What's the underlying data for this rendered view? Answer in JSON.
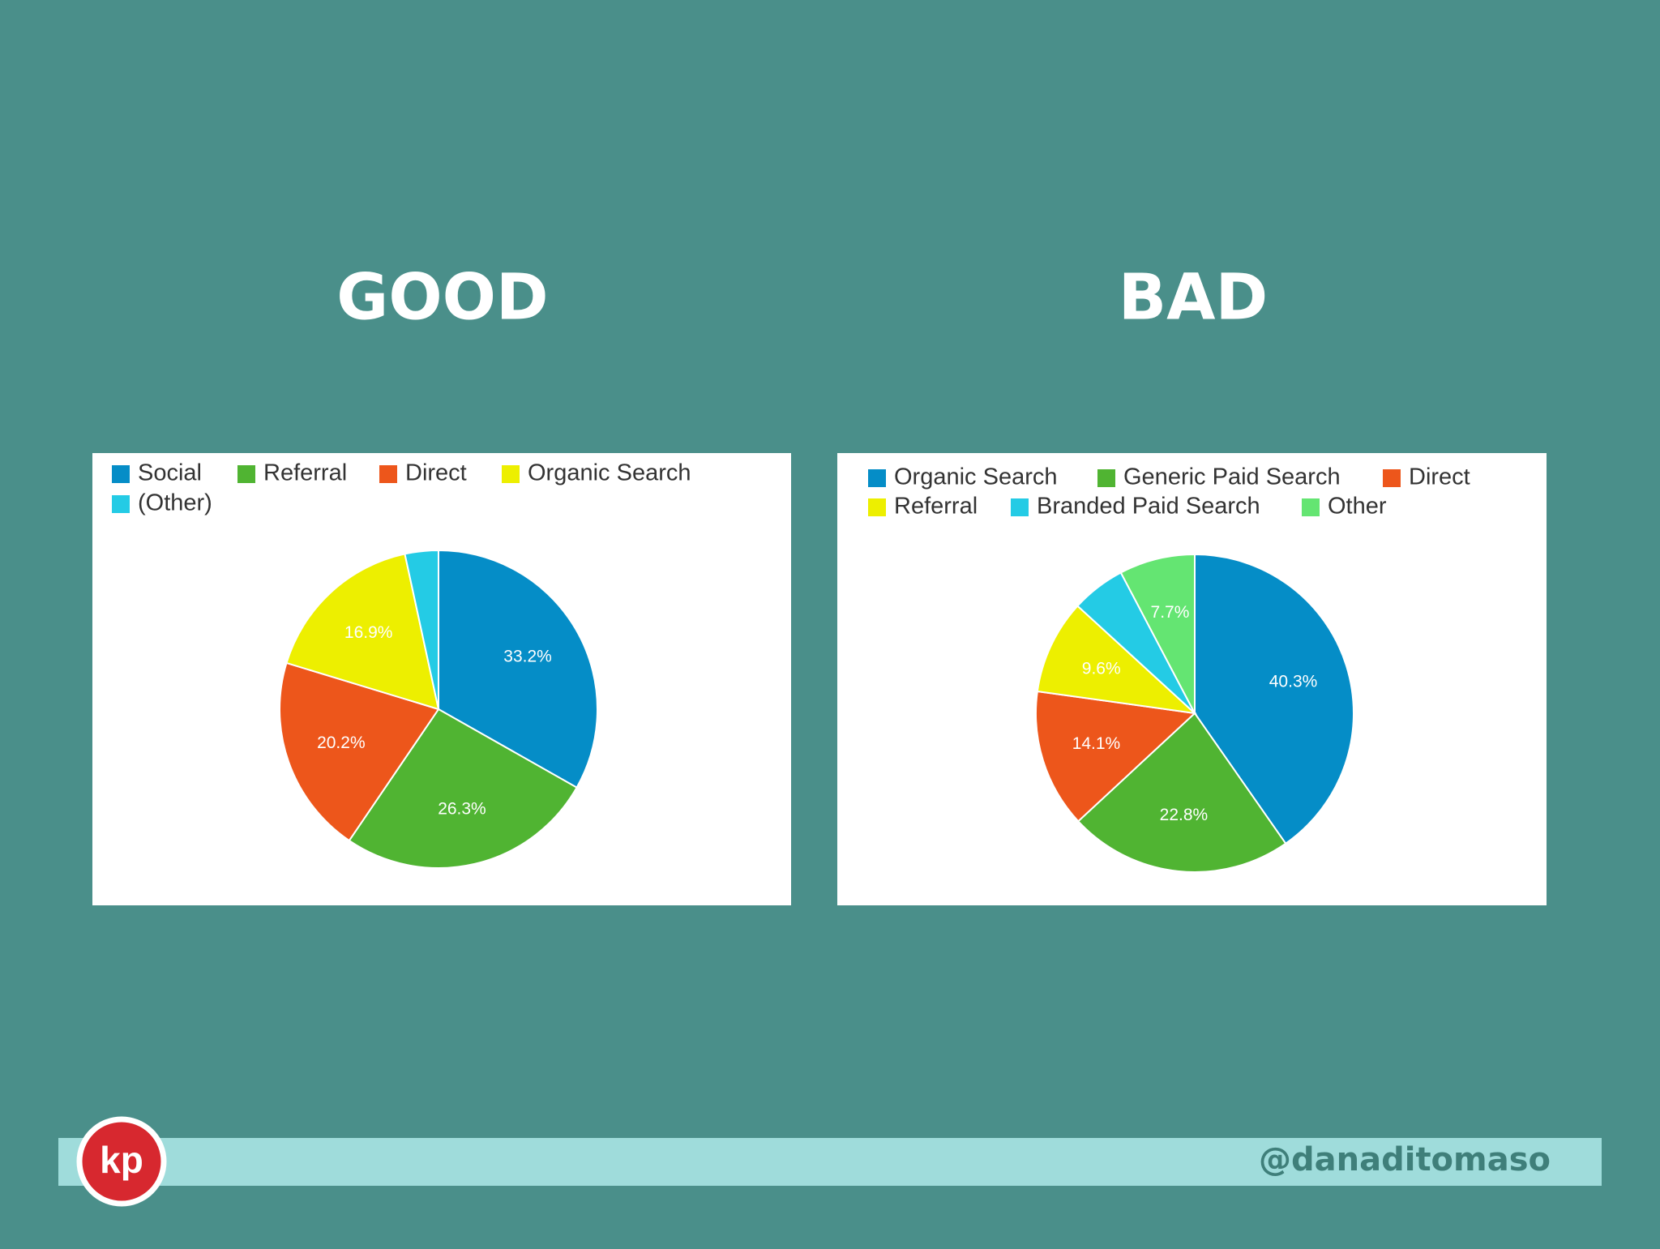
{
  "chart_data": [
    {
      "type": "pie",
      "title": "GOOD",
      "categories": [
        "Social",
        "Referral",
        "Direct",
        "Organic Search",
        "(Other)"
      ],
      "values": [
        33.2,
        26.3,
        20.2,
        16.9,
        3.4
      ],
      "value_labels": [
        "33.2%",
        "26.3%",
        "20.2%",
        "16.9%",
        null
      ],
      "colors": [
        "#058dc7",
        "#50b432",
        "#ed561b",
        "#edef00",
        "#24cbe5"
      ]
    },
    {
      "type": "pie",
      "title": "BAD",
      "categories": [
        "Organic Search",
        "Generic Paid Search",
        "Direct",
        "Referral",
        "Branded Paid Search",
        "Other"
      ],
      "values": [
        40.3,
        22.8,
        14.1,
        9.6,
        5.5,
        7.7
      ],
      "value_labels": [
        "40.3%",
        "22.8%",
        "14.1%",
        "9.6%",
        null,
        "7.7%"
      ],
      "colors": [
        "#058dc7",
        "#50b432",
        "#ed561b",
        "#edef00",
        "#24cbe5",
        "#64e572"
      ]
    }
  ],
  "footer": {
    "logo": "kp",
    "handle": "@danaditomaso"
  }
}
